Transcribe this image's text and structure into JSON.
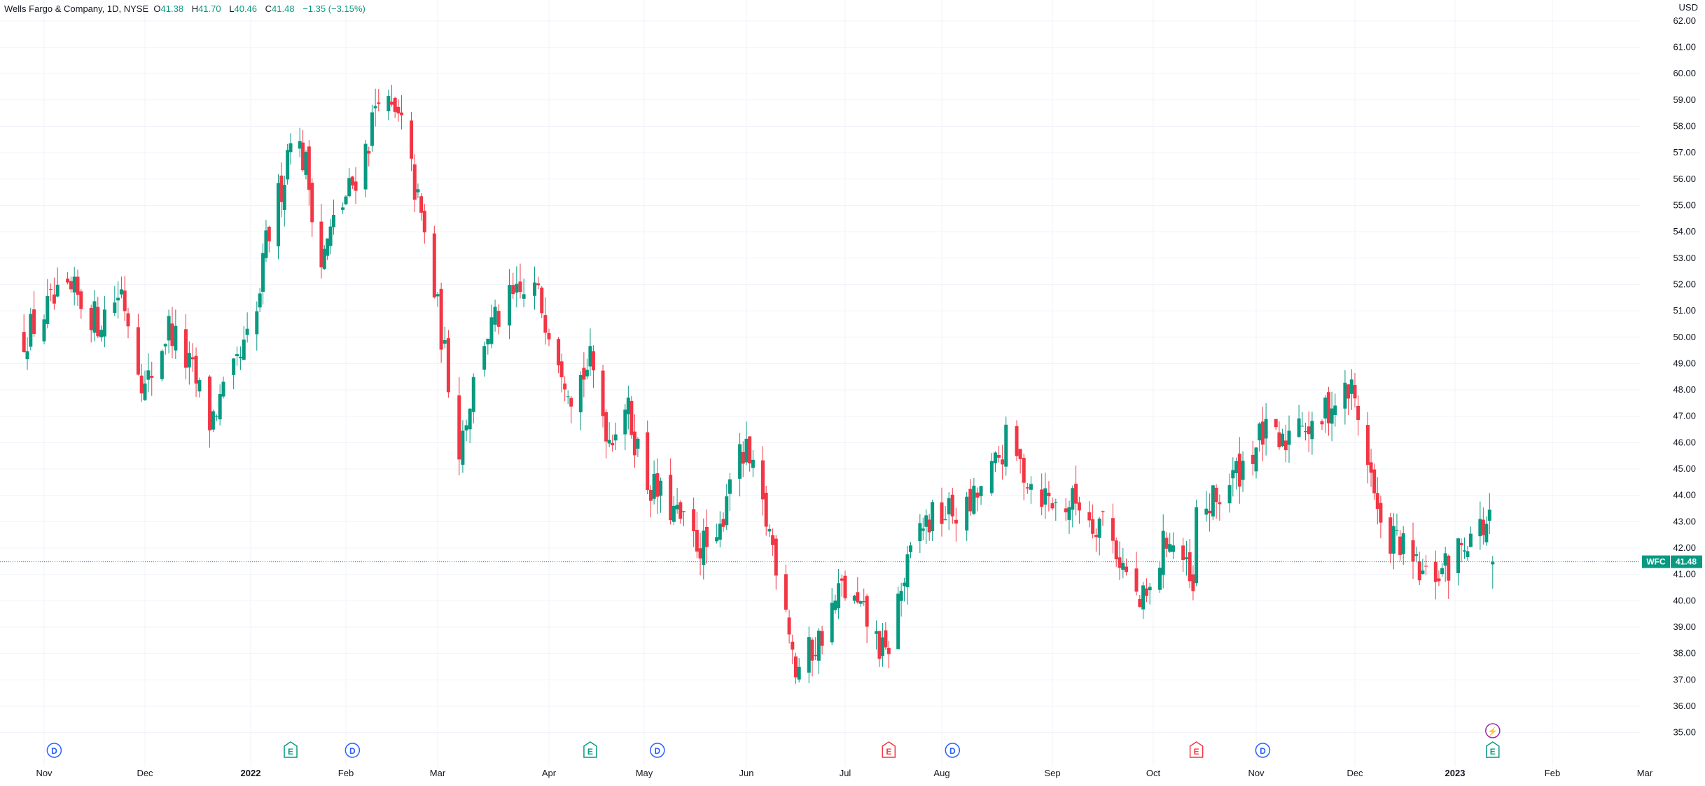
{
  "legend": {
    "symbol": "Wells Fargo & Company, 1D, NYSE",
    "open_label": "O",
    "open_value": "41.38",
    "high_label": "H",
    "high_value": "41.70",
    "low_label": "L",
    "low_value": "40.46",
    "close_label": "C",
    "close_value": "41.48",
    "change": "−1.35 (−3.15%)"
  },
  "currency": "USD",
  "price_tag": {
    "ticker": "WFC",
    "price": "41.48",
    "color": "#089981"
  },
  "colors": {
    "up": "#089981",
    "down": "#f23645",
    "grid": "#f0f3fa",
    "axis_text": "#131722",
    "dividend": "#2962ff",
    "earnings_up": "#089981",
    "earnings_down": "#f23645",
    "split": "#9c27b0"
  },
  "chart_data": {
    "type": "candlestick",
    "title": "Wells Fargo & Company, 1D, NYSE",
    "ylabel": "USD",
    "ylim": [
      34.6,
      62.8
    ],
    "y_ticks": [
      "35.00",
      "36.00",
      "37.00",
      "38.00",
      "39.00",
      "40.00",
      "41.00",
      "42.00",
      "43.00",
      "44.00",
      "45.00",
      "46.00",
      "47.00",
      "48.00",
      "49.00",
      "50.00",
      "51.00",
      "52.00",
      "53.00",
      "54.00",
      "55.00",
      "56.00",
      "57.00",
      "58.00",
      "59.00",
      "60.00",
      "61.00",
      "62.00"
    ],
    "x_ticks": [
      "Nov",
      "Dec",
      "2022",
      "Feb",
      "Mar",
      "Apr",
      "May",
      "Jun",
      "Jul",
      "Aug",
      "Sep",
      "Oct",
      "Nov",
      "Dec",
      "2023",
      "Feb",
      "Mar"
    ],
    "last_price": 41.48,
    "close_path": [
      {
        "date": "2021-10-26",
        "close": 50.0
      },
      {
        "date": "2021-11-03",
        "close": 51.2
      },
      {
        "date": "2021-11-10",
        "close": 51.6
      },
      {
        "date": "2021-11-17",
        "close": 50.6
      },
      {
        "date": "2021-11-24",
        "close": 51.8
      },
      {
        "date": "2021-12-01",
        "close": 48.0
      },
      {
        "date": "2021-12-08",
        "close": 50.4
      },
      {
        "date": "2021-12-15",
        "close": 48.6
      },
      {
        "date": "2021-12-20",
        "close": 46.8
      },
      {
        "date": "2021-12-27",
        "close": 48.5
      },
      {
        "date": "2022-01-03",
        "close": 50.8
      },
      {
        "date": "2022-01-06",
        "close": 53.5
      },
      {
        "date": "2022-01-12",
        "close": 56.2
      },
      {
        "date": "2022-01-14",
        "close": 58.0
      },
      {
        "date": "2022-01-19",
        "close": 56.5
      },
      {
        "date": "2022-01-24",
        "close": 52.8
      },
      {
        "date": "2022-01-28",
        "close": 54.3
      },
      {
        "date": "2022-02-03",
        "close": 55.8
      },
      {
        "date": "2022-02-08",
        "close": 57.5
      },
      {
        "date": "2022-02-11",
        "close": 59.5
      },
      {
        "date": "2022-02-14",
        "close": 58.6
      },
      {
        "date": "2022-02-18",
        "close": 58.0
      },
      {
        "date": "2022-02-24",
        "close": 54.5
      },
      {
        "date": "2022-03-01",
        "close": 51.0
      },
      {
        "date": "2022-03-07",
        "close": 45.9
      },
      {
        "date": "2022-03-14",
        "close": 50.0
      },
      {
        "date": "2022-03-21",
        "close": 51.3
      },
      {
        "date": "2022-03-28",
        "close": 51.8
      },
      {
        "date": "2022-04-01",
        "close": 50.5
      },
      {
        "date": "2022-04-08",
        "close": 48.0
      },
      {
        "date": "2022-04-14",
        "close": 49.0
      },
      {
        "date": "2022-04-20",
        "close": 46.2
      },
      {
        "date": "2022-04-25",
        "close": 47.5
      },
      {
        "date": "2022-05-02",
        "close": 44.5
      },
      {
        "date": "2022-05-09",
        "close": 43.5
      },
      {
        "date": "2022-05-16",
        "close": 42.3
      },
      {
        "date": "2022-05-23",
        "close": 41.8
      },
      {
        "date": "2022-05-27",
        "close": 45.0
      },
      {
        "date": "2022-06-01",
        "close": 45.5
      },
      {
        "date": "2022-06-08",
        "close": 42.6
      },
      {
        "date": "2022-06-13",
        "close": 40.0
      },
      {
        "date": "2022-06-16",
        "close": 37.3
      },
      {
        "date": "2022-06-23",
        "close": 38.5
      },
      {
        "date": "2022-06-30",
        "close": 40.5
      },
      {
        "date": "2022-07-08",
        "close": 39.2
      },
      {
        "date": "2022-07-14",
        "close": 37.8
      },
      {
        "date": "2022-07-18",
        "close": 40.0
      },
      {
        "date": "2022-07-25",
        "close": 42.8
      },
      {
        "date": "2022-08-01",
        "close": 43.3
      },
      {
        "date": "2022-08-08",
        "close": 43.4
      },
      {
        "date": "2022-08-15",
        "close": 44.8
      },
      {
        "date": "2022-08-19",
        "close": 46.0
      },
      {
        "date": "2022-08-26",
        "close": 44.5
      },
      {
        "date": "2022-09-02",
        "close": 43.6
      },
      {
        "date": "2022-09-09",
        "close": 43.8
      },
      {
        "date": "2022-09-13",
        "close": 43.0
      },
      {
        "date": "2022-09-16",
        "close": 43.2
      },
      {
        "date": "2022-09-23",
        "close": 41.0
      },
      {
        "date": "2022-09-27",
        "close": 39.8
      },
      {
        "date": "2022-09-30",
        "close": 40.2
      },
      {
        "date": "2022-10-05",
        "close": 42.5
      },
      {
        "date": "2022-10-10",
        "close": 41.5
      },
      {
        "date": "2022-10-13",
        "close": 40.1
      },
      {
        "date": "2022-10-14",
        "close": 43.2
      },
      {
        "date": "2022-10-20",
        "close": 43.8
      },
      {
        "date": "2022-10-27",
        "close": 45.0
      },
      {
        "date": "2022-11-03",
        "close": 46.3
      },
      {
        "date": "2022-11-09",
        "close": 45.8
      },
      {
        "date": "2022-11-14",
        "close": 47.3
      },
      {
        "date": "2022-11-18",
        "close": 46.2
      },
      {
        "date": "2022-11-23",
        "close": 47.4
      },
      {
        "date": "2022-11-30",
        "close": 48.0
      },
      {
        "date": "2022-12-05",
        "close": 45.5
      },
      {
        "date": "2022-12-09",
        "close": 42.5
      },
      {
        "date": "2022-12-14",
        "close": 42.3
      },
      {
        "date": "2022-12-19",
        "close": 41.3
      },
      {
        "date": "2022-12-23",
        "close": 40.8
      },
      {
        "date": "2022-12-30",
        "close": 41.3
      },
      {
        "date": "2023-01-05",
        "close": 42.5
      },
      {
        "date": "2023-01-10",
        "close": 42.8
      },
      {
        "date": "2023-01-12",
        "close": 42.9
      },
      {
        "date": "2023-01-13",
        "close": 41.48
      }
    ],
    "markers": [
      {
        "type": "dividend",
        "label": "D",
        "date": "2021-11-04"
      },
      {
        "type": "earnings",
        "label": "E",
        "date": "2022-01-14",
        "direction": "up"
      },
      {
        "type": "dividend",
        "label": "D",
        "date": "2022-02-03"
      },
      {
        "type": "earnings",
        "label": "E",
        "date": "2022-04-14",
        "direction": "up"
      },
      {
        "type": "dividend",
        "label": "D",
        "date": "2022-05-05"
      },
      {
        "type": "earnings",
        "label": "E",
        "date": "2022-07-15",
        "direction": "down"
      },
      {
        "type": "dividend",
        "label": "D",
        "date": "2022-08-04"
      },
      {
        "type": "earnings",
        "label": "E",
        "date": "2022-10-14",
        "direction": "down"
      },
      {
        "type": "dividend",
        "label": "D",
        "date": "2022-11-03"
      },
      {
        "type": "split",
        "label": "⚡",
        "date": "2023-01-13"
      },
      {
        "type": "earnings",
        "label": "E",
        "date": "2023-01-13",
        "direction": "up"
      }
    ]
  }
}
